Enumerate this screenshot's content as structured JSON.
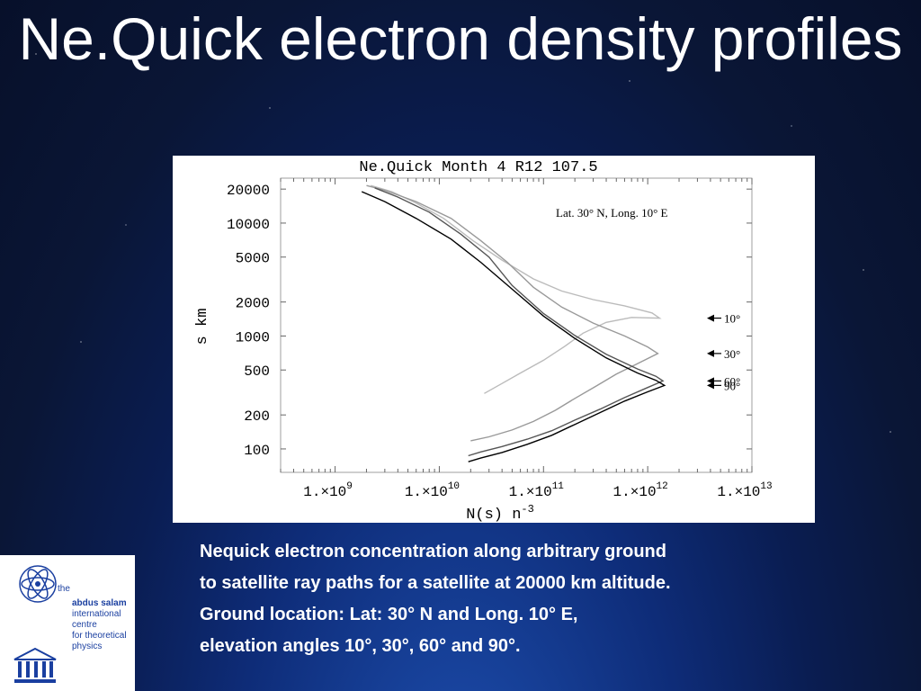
{
  "slide": {
    "title": "Ne.Quick electron density profiles",
    "caption_lines": [
      "Nequick electron concentration along arbitrary ground",
      "to satellite ray paths for a satellite at 20000 km altitude.",
      "Ground location: Lat: 30° N and Long. 10° E,",
      "elevation angles 10°, 30°, 60° and 90°."
    ]
  },
  "logo": {
    "lines": [
      "the",
      "abdus salam",
      "international",
      "centre",
      "for theoretical",
      "physics"
    ]
  },
  "chart_data": {
    "type": "line",
    "title": "Ne.Quick Month 4 R12 107.5",
    "annotation": "Lat. 30° N, Long. 10° E",
    "xlabel": "N(s) n",
    "xlabel_sup": "-3",
    "ylabel": "s km",
    "x_scale": "log",
    "y_scale": "log",
    "xlim": [
      300000000.0,
      10000000000000.0
    ],
    "ylim": [
      62,
      25000
    ],
    "x_ticks": [
      {
        "value": 1000000000.0,
        "base": "1.×10",
        "exp": "9"
      },
      {
        "value": 10000000000.0,
        "base": "1.×10",
        "exp": "10"
      },
      {
        "value": 100000000000.0,
        "base": "1.×10",
        "exp": "11"
      },
      {
        "value": 1000000000000.0,
        "base": "1.×10",
        "exp": "12"
      },
      {
        "value": 10000000000000.0,
        "base": "1.×10",
        "exp": "13"
      }
    ],
    "y_ticks": [
      {
        "value": 20000,
        "label": "20000"
      },
      {
        "value": 10000,
        "label": "10000"
      },
      {
        "value": 5000,
        "label": "5000"
      },
      {
        "value": 2000,
        "label": "2000"
      },
      {
        "value": 1000,
        "label": "1000"
      },
      {
        "value": 500,
        "label": "500"
      },
      {
        "value": 200,
        "label": "200"
      },
      {
        "value": 100,
        "label": "100"
      }
    ],
    "series": [
      {
        "name": "10°",
        "color": "#bbbbbb",
        "label_at": 1440,
        "points": [
          [
            27000000000.0,
            310
          ],
          [
            40000000000.0,
            380
          ],
          [
            60000000000.0,
            470
          ],
          [
            100000000000.0,
            610
          ],
          [
            160000000000.0,
            810
          ],
          [
            240000000000.0,
            1060
          ],
          [
            400000000000.0,
            1320
          ],
          [
            700000000000.0,
            1460
          ],
          [
            1300000000000.0,
            1440
          ],
          [
            1100000000000.0,
            1600
          ],
          [
            600000000000.0,
            1850
          ],
          [
            300000000000.0,
            2100
          ],
          [
            150000000000.0,
            2500
          ],
          [
            80000000000.0,
            3200
          ],
          [
            40000000000.0,
            4700
          ],
          [
            21000000000.0,
            7000
          ],
          [
            11000000000.0,
            11000
          ],
          [
            6000000000.0,
            15000
          ],
          [
            3500000000.0,
            19000
          ],
          [
            2200000000.0,
            21500
          ]
        ]
      },
      {
        "name": "30°",
        "color": "#999999",
        "label_at": 700,
        "points": [
          [
            20000000000.0,
            118
          ],
          [
            30000000000.0,
            128
          ],
          [
            50000000000.0,
            147
          ],
          [
            80000000000.0,
            175
          ],
          [
            130000000000.0,
            220
          ],
          [
            200000000000.0,
            280
          ],
          [
            320000000000.0,
            360
          ],
          [
            500000000000.0,
            460
          ],
          [
            800000000000.0,
            570
          ],
          [
            1250000000000.0,
            700
          ],
          [
            1000000000000.0,
            800
          ],
          [
            600000000000.0,
            1000
          ],
          [
            300000000000.0,
            1300
          ],
          [
            150000000000.0,
            1800
          ],
          [
            80000000000.0,
            2700
          ],
          [
            45000000000.0,
            4500
          ],
          [
            25000000000.0,
            7000
          ],
          [
            13000000000.0,
            11000
          ],
          [
            6000000000.0,
            15500
          ],
          [
            3000000000.0,
            19500
          ],
          [
            2000000000.0,
            21500
          ]
        ]
      },
      {
        "name": "60°",
        "color": "#555555",
        "label_at": 400,
        "points": [
          [
            19000000000.0,
            87
          ],
          [
            25000000000.0,
            94
          ],
          [
            40000000000.0,
            105
          ],
          [
            70000000000.0,
            122
          ],
          [
            120000000000.0,
            145
          ],
          [
            200000000000.0,
            180
          ],
          [
            350000000000.0,
            225
          ],
          [
            600000000000.0,
            285
          ],
          [
            1000000000000.0,
            350
          ],
          [
            1400000000000.0,
            400
          ],
          [
            1200000000000.0,
            440
          ],
          [
            800000000000.0,
            510
          ],
          [
            400000000000.0,
            690
          ],
          [
            200000000000.0,
            1010
          ],
          [
            100000000000.0,
            1580
          ],
          [
            50000000000.0,
            2800
          ],
          [
            30000000000.0,
            5000
          ],
          [
            16000000000.0,
            8000
          ],
          [
            8000000000.0,
            12500
          ],
          [
            4000000000.0,
            17000
          ],
          [
            2400000000.0,
            20500
          ]
        ]
      },
      {
        "name": "90°",
        "color": "#000000",
        "label_at": 365,
        "points": [
          [
            19000000000.0,
            77
          ],
          [
            25000000000.0,
            83
          ],
          [
            40000000000.0,
            93
          ],
          [
            70000000000.0,
            110
          ],
          [
            120000000000.0,
            132
          ],
          [
            200000000000.0,
            165
          ],
          [
            350000000000.0,
            210
          ],
          [
            600000000000.0,
            265
          ],
          [
            1000000000000.0,
            320
          ],
          [
            1450000000000.0,
            365
          ],
          [
            1200000000000.0,
            405
          ],
          [
            800000000000.0,
            470
          ],
          [
            400000000000.0,
            640
          ],
          [
            200000000000.0,
            950
          ],
          [
            100000000000.0,
            1500
          ],
          [
            50000000000.0,
            2600
          ],
          [
            25000000000.0,
            4500
          ],
          [
            13000000000.0,
            7200
          ],
          [
            6000000000.0,
            11000
          ],
          [
            3000000000.0,
            15500
          ],
          [
            1800000000.0,
            19000
          ]
        ]
      }
    ]
  }
}
